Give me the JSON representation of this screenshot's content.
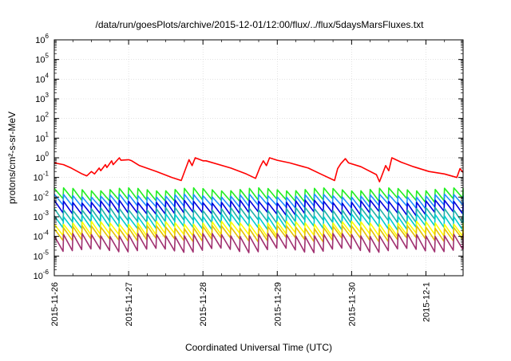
{
  "chart_data": {
    "type": "line",
    "title": "/data/run/goesPlots/archive/2015-12-01/12:00/flux/../flux/5daysMarsFluxes.txt",
    "xlabel": "Coordinated Universal Time (UTC)",
    "ylabel": "protons/cm²-s-sr-MeV",
    "yscale": "log",
    "ylim": [
      1e-06,
      1000000.0
    ],
    "xlim": [
      "2015-11-26 00:00",
      "2015-12-01 12:00"
    ],
    "x_ticks": [
      "2015-11-26",
      "2015-11-27",
      "2015-11-28",
      "2015-11-29",
      "2015-11-30",
      "2015-12-1"
    ],
    "y_ticks": [
      {
        "base": "10",
        "exp": "-6"
      },
      {
        "base": "10",
        "exp": "-5"
      },
      {
        "base": "10",
        "exp": "-4"
      },
      {
        "base": "10",
        "exp": "-3"
      },
      {
        "base": "10",
        "exp": "-2"
      },
      {
        "base": "10",
        "exp": "-1"
      },
      {
        "base": "10",
        "exp": "0"
      },
      {
        "base": "10",
        "exp": "1"
      },
      {
        "base": "10",
        "exp": "2"
      },
      {
        "base": "10",
        "exp": "3"
      },
      {
        "base": "10",
        "exp": "4"
      },
      {
        "base": "10",
        "exp": "5"
      },
      {
        "base": "10",
        "exp": "6"
      }
    ],
    "grid": true,
    "legend": "none",
    "series": [
      {
        "color": "#ff0000",
        "x": [
          "2015-11-26 00:00",
          "2015-11-26 03:00",
          "2015-11-26 05:30",
          "2015-11-26 09:00",
          "2015-11-26 10:30",
          "2015-11-26 12:00",
          "2015-11-26 13:00",
          "2015-11-26 14:30",
          "2015-11-26 15:00",
          "2015-11-26 16:30",
          "2015-11-26 17:00",
          "2015-11-26 18:30",
          "2015-11-26 19:00",
          "2015-11-26 21:00",
          "2015-11-26 21:30",
          "2015-11-27 00:00",
          "2015-11-27 01:00",
          "2015-11-27 03:30",
          "2015-11-27 09:00",
          "2015-11-27 14:00",
          "2015-11-27 17:00",
          "2015-11-27 18:30",
          "2015-11-27 19:30",
          "2015-11-27 20:30",
          "2015-11-27 21:30",
          "2015-11-28 00:00",
          "2015-11-28 01:00",
          "2015-11-28 09:00",
          "2015-11-28 14:00",
          "2015-11-28 17:00",
          "2015-11-28 18:30",
          "2015-11-28 19:30",
          "2015-11-28 20:30",
          "2015-11-28 21:30",
          "2015-11-29 00:00",
          "2015-11-29 04:00",
          "2015-11-29 10:00",
          "2015-11-29 14:00",
          "2015-11-29 18:30",
          "2015-11-29 19:30",
          "2015-11-29 20:30",
          "2015-11-29 22:00",
          "2015-11-29 23:00",
          "2015-11-30 03:00",
          "2015-11-30 08:00",
          "2015-11-30 09:00",
          "2015-11-30 11:00",
          "2015-11-30 12:00",
          "2015-11-30 13:00",
          "2015-11-30 16:00",
          "2015-11-30 20:00",
          "2015-12-01 01:00",
          "2015-12-01 06:00",
          "2015-12-01 10:00",
          "2015-12-01 11:00",
          "2015-12-01 12:00"
        ],
        "y": [
          0.55,
          0.45,
          0.3,
          0.15,
          0.12,
          0.2,
          0.15,
          0.3,
          0.22,
          0.45,
          0.32,
          0.7,
          0.45,
          1.0,
          0.75,
          0.8,
          0.7,
          0.4,
          0.2,
          0.1,
          0.07,
          0.3,
          0.8,
          0.4,
          1.0,
          0.7,
          0.7,
          0.3,
          0.15,
          0.09,
          0.35,
          0.7,
          0.4,
          1.0,
          0.75,
          0.55,
          0.3,
          0.15,
          0.07,
          0.28,
          0.5,
          0.9,
          0.55,
          0.35,
          0.14,
          0.06,
          0.4,
          0.22,
          1.0,
          0.6,
          0.35,
          0.2,
          0.15,
          0.1,
          0.28,
          0.18
        ]
      },
      {
        "color": "#22ee22",
        "sawtooth": {
          "period_hours": 3,
          "start": "2015-11-26 00:00",
          "peak": 0.025,
          "trough": 0.007
        }
      },
      {
        "color": "#1e90ff",
        "sawtooth": {
          "period_hours": 3,
          "start": "2015-11-26 00:00",
          "peak": 0.012,
          "trough": 0.0035
        }
      },
      {
        "color": "#0000dd",
        "sawtooth": {
          "period_hours": 3,
          "start": "2015-11-26 00:00",
          "peak": 0.006,
          "trough": 0.0015
        }
      },
      {
        "color": "#20b2aa",
        "sawtooth": {
          "period_hours": 3,
          "start": "2015-11-26 00:00",
          "peak": 0.0025,
          "trough": 0.0006
        }
      },
      {
        "color": "#00cccc",
        "sawtooth": {
          "period_hours": 3,
          "start": "2015-11-26 00:00",
          "peak": 0.0012,
          "trough": 0.00028
        }
      },
      {
        "color": "#ffff00",
        "sawtooth": {
          "period_hours": 3,
          "start": "2015-11-26 00:00",
          "peak": 0.0005,
          "trough": 0.00012
        }
      },
      {
        "color": "#e6c200",
        "sawtooth": {
          "period_hours": 3,
          "start": "2015-11-26 00:00",
          "peak": 0.0003,
          "trough": 7e-05
        }
      },
      {
        "color": "#a03070",
        "sawtooth": {
          "period_hours": 3,
          "start": "2015-11-26 00:00",
          "peak": 0.00012,
          "trough": 2e-05
        }
      }
    ]
  }
}
